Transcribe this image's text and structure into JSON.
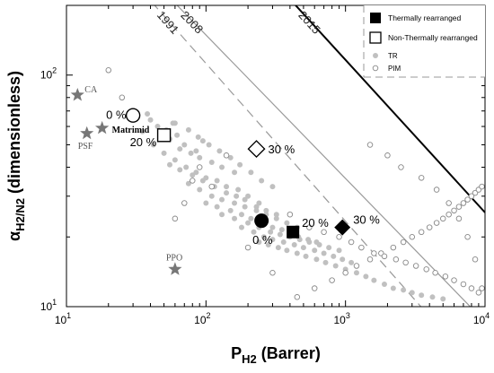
{
  "chart_data": {
    "type": "scatter",
    "title": "",
    "xlabel": "P",
    "xlabel_sub": "H2",
    "xlabel_unit": "(Barrer)",
    "ylabel": "α",
    "ylabel_sub": "H2/N2",
    "ylabel_unit": "(dimensionless)",
    "x_scale": "log",
    "y_scale": "log",
    "xlim": [
      10,
      10000
    ],
    "ylim": [
      10,
      200
    ],
    "x_ticks": [
      {
        "value": 10,
        "base": "10",
        "exp": "1"
      },
      {
        "value": 100,
        "base": "10",
        "exp": "2"
      },
      {
        "value": 1000,
        "base": "10",
        "exp": "3"
      },
      {
        "value": 10000,
        "base": "10",
        "exp": "4"
      }
    ],
    "y_ticks": [
      {
        "value": 10,
        "base": "10",
        "exp": "1"
      },
      {
        "value": 100,
        "base": "10",
        "exp": "2"
      }
    ],
    "upper_bounds": [
      {
        "name": "1991",
        "style": "dashed",
        "color": "#9a9a9a",
        "points": [
          [
            10,
            540
          ],
          [
            10000,
            4.86
          ]
        ]
      },
      {
        "name": "2008",
        "style": "solid",
        "color": "#9a9a9a",
        "points": [
          [
            10,
            620
          ],
          [
            10000,
            8.6
          ]
        ]
      },
      {
        "name": "2015",
        "style": "solid",
        "color": "#000000",
        "points": [
          [
            10,
            2420
          ],
          [
            10000,
            25.5
          ]
        ]
      }
    ],
    "legend": {
      "position": "top-right",
      "items": [
        {
          "label": "Thermally rearranged",
          "marker": "filled-square"
        },
        {
          "label": "Non-Thermally rearranged",
          "marker": "open-square"
        },
        {
          "label": "TR",
          "marker": "small-filled-circle"
        },
        {
          "label": "PIM",
          "marker": "small-open-circle"
        }
      ]
    },
    "reference_polymers": [
      {
        "label": "CA",
        "x": 12,
        "y": 82,
        "marker": "star"
      },
      {
        "label": "PSF",
        "x": 14,
        "y": 56,
        "marker": "star"
      },
      {
        "label": "Matrimid",
        "x": 18,
        "y": 59,
        "marker": "star"
      },
      {
        "label": "PPO",
        "x": 60,
        "y": 14.5,
        "marker": "star"
      }
    ],
    "highlighted_points": [
      {
        "label": "0 %",
        "x": 30,
        "y": 67,
        "marker": "open-circle"
      },
      {
        "label": "20 %",
        "x": 50,
        "y": 55,
        "marker": "open-square"
      },
      {
        "label": "30 %",
        "x": 230,
        "y": 48,
        "marker": "open-diamond"
      },
      {
        "label": "0 %",
        "x": 250,
        "y": 23.5,
        "marker": "filled-circle"
      },
      {
        "label": "20 %",
        "x": 420,
        "y": 21,
        "marker": "filled-square"
      },
      {
        "label": "30 %",
        "x": 950,
        "y": 22,
        "marker": "filled-diamond"
      }
    ],
    "series": [
      {
        "name": "TR",
        "marker": "small-filled-circle",
        "color": "#c0c0c0",
        "x": [
          38,
          45,
          52,
          58,
          62,
          70,
          85,
          95,
          30,
          40,
          48,
          55,
          65,
          78,
          90,
          110,
          130,
          160,
          35,
          42,
          50,
          60,
          72,
          85,
          100,
          120,
          140,
          170,
          200,
          240,
          55,
          65,
          80,
          95,
          115,
          140,
          165,
          190,
          230,
          270,
          320,
          75,
          90,
          110,
          130,
          160,
          190,
          230,
          270,
          320,
          380,
          450,
          100,
          120,
          150,
          180,
          210,
          250,
          300,
          350,
          400,
          460,
          540,
          620,
          130,
          160,
          200,
          240,
          290,
          340,
          400,
          470,
          550,
          650,
          760,
          900,
          180,
          220,
          260,
          300,
          360,
          430,
          500,
          600,
          700,
          820,
          950,
          1100,
          240,
          280,
          330,
          380,
          450,
          520,
          620,
          720,
          850,
          1000,
          1200,
          1400,
          60,
          75,
          88,
          105,
          125,
          150,
          175,
          210,
          250,
          300,
          1600,
          1900,
          2200,
          2600,
          3000,
          3500,
          4200,
          5000
        ],
        "y": [
          68,
          60,
          58,
          62,
          55,
          50,
          47,
          52,
          70,
          64,
          56,
          53,
          48,
          46,
          44,
          42,
          40,
          38,
          57,
          50,
          46,
          43,
          40,
          38,
          36,
          35,
          33,
          32,
          30,
          28,
          41,
          39,
          37,
          35,
          33,
          31,
          30,
          29,
          27,
          26,
          25,
          34,
          32,
          30,
          29,
          28,
          27,
          26,
          25,
          24,
          23,
          22,
          28,
          27,
          26,
          25,
          24,
          23,
          22,
          21.5,
          21,
          20,
          19.5,
          19,
          25,
          24,
          23,
          22,
          21,
          20.5,
          20,
          19.5,
          19,
          18.5,
          18,
          17.5,
          22,
          21,
          20,
          19.5,
          19,
          18.5,
          18,
          17.5,
          17,
          16.5,
          16,
          15.5,
          19,
          18.5,
          18,
          17.5,
          17,
          16.5,
          16,
          15.5,
          15,
          14.5,
          14,
          13.5,
          62,
          58,
          54,
          50,
          47,
          44,
          41,
          38,
          35,
          33,
          13,
          12.5,
          12,
          11.8,
          11.5,
          11.2,
          11,
          10.8
        ]
      },
      {
        "name": "PIM",
        "marker": "small-open-circle",
        "color": "#888888",
        "x": [
          20,
          25,
          30,
          60,
          70,
          80,
          90,
          110,
          140,
          200,
          300,
          450,
          600,
          800,
          1000,
          1200,
          1500,
          1800,
          2200,
          2600,
          3000,
          3500,
          4000,
          4500,
          5000,
          5500,
          6000,
          6500,
          7000,
          7500,
          8000,
          8500,
          9000,
          9500,
          400,
          550,
          700,
          900,
          1100,
          1300,
          1600,
          1900,
          2300,
          2700,
          3200,
          3800,
          4400,
          5200,
          6000,
          7000,
          8000,
          9000,
          1500,
          2000,
          2500,
          3500,
          4500,
          5500,
          6500,
          7500,
          8500,
          9500
        ],
        "y": [
          105,
          80,
          70,
          24,
          28,
          35,
          40,
          33,
          45,
          18,
          14,
          11,
          12,
          13,
          14,
          15,
          16,
          17,
          18,
          19,
          20,
          21,
          22,
          23,
          24,
          25,
          26,
          27,
          28,
          29,
          30,
          31,
          32,
          33,
          25,
          22,
          21,
          20,
          19,
          18,
          17,
          16.5,
          16,
          15.5,
          15,
          14.5,
          14,
          13.5,
          13,
          12.5,
          12,
          11.5,
          50,
          45,
          40,
          36,
          32,
          28,
          24,
          20,
          16,
          12
        ]
      }
    ]
  }
}
